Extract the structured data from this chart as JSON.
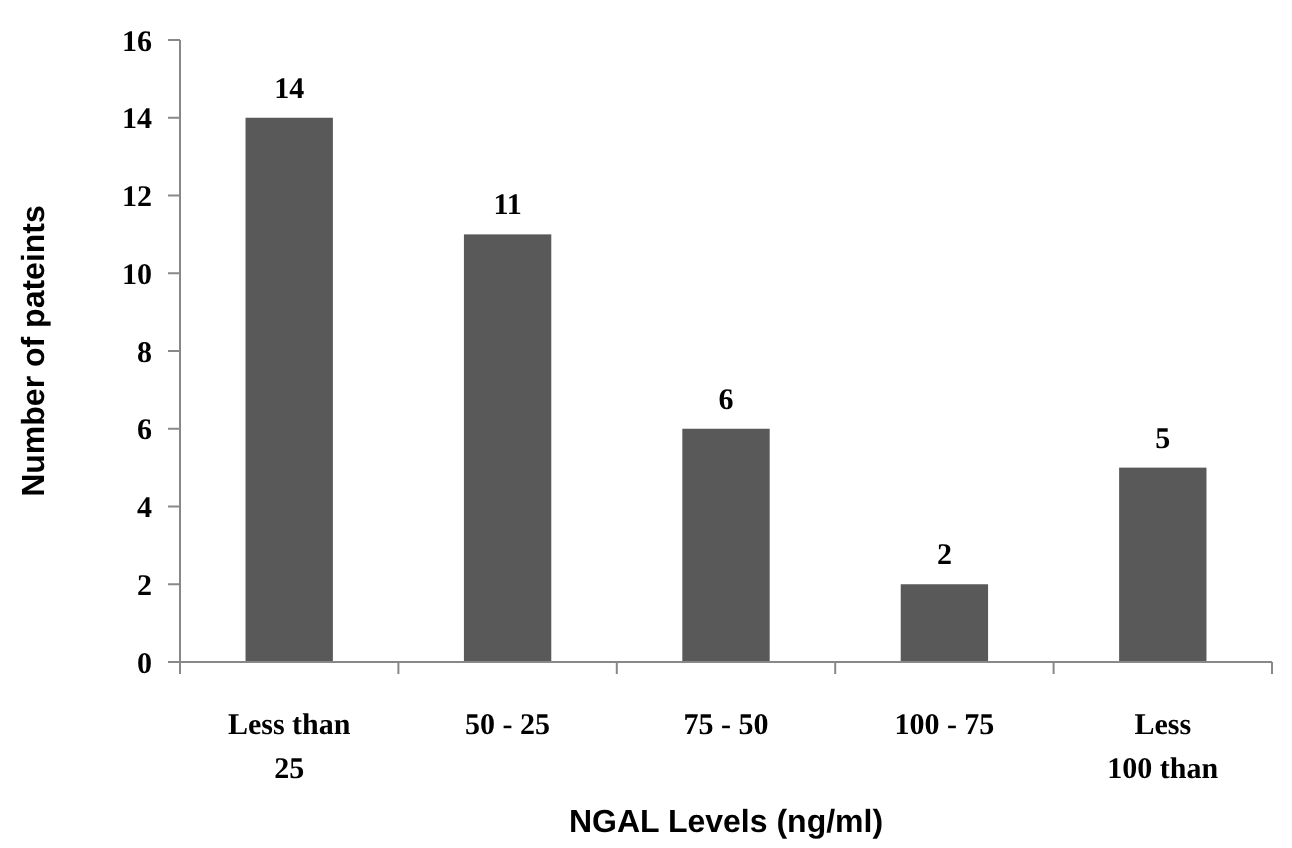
{
  "chart_data": {
    "type": "bar",
    "xlabel": "NGAL Levels (ng/ml)",
    "ylabel": "Number of pateints",
    "categories": [
      "Less than\n25",
      "50  -  25",
      "75  -  50",
      "100  -  75",
      "Less\n100 than"
    ],
    "values": [
      14,
      11,
      6,
      2,
      5
    ],
    "color": "#595959",
    "data_labels": true,
    "ylim": [
      0,
      16
    ],
    "yticks": [
      0,
      2,
      4,
      6,
      8,
      10,
      12,
      14,
      16
    ],
    "grid": false
  }
}
